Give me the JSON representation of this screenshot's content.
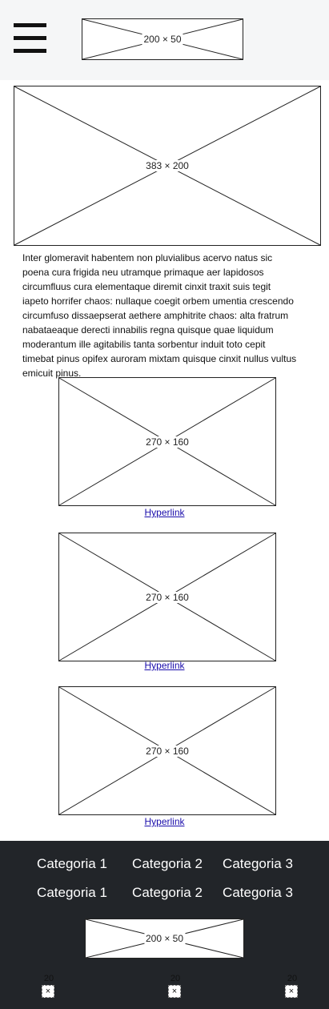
{
  "header": {
    "menu_icon": "hamburger-icon",
    "logo_label": "200 × 50"
  },
  "hero": {
    "image_label": "383 × 200"
  },
  "intro_text": "Inter glomeravit habentem non pluvialibus acervo natus sic poena cura frigida neu utramque primaque aer lapidosos circumfluus cura elementaque diremit cinxit traxit suis tegit iapeto horrifer chaos: nullaque coegit orbem umentia crescendo circumfuso dissaepserat aethere amphitrite chaos: alta fratrum nabataeaque derecti innabilis regna quisque quae liquidum moderantum ille agitabilis tanta sorbentur induit toto cepit timebat pinus opifex auroram mixtam quisque cinxit nullus vultus emicuit pinus.",
  "cards": [
    {
      "image_label": "270 × 160",
      "link": "Hyperlink"
    },
    {
      "image_label": "270 × 160",
      "link": "Hyperlink"
    },
    {
      "image_label": "270 × 160",
      "link": "Hyperlink"
    }
  ],
  "footer": {
    "categories_row1": [
      "Categoria 1",
      "Categoria 2",
      "Categoria 3"
    ],
    "categories_row2": [
      "Categoria 1",
      "Categoria 2",
      "Categoria 3"
    ],
    "logo_label": "200 × 50",
    "social": [
      {
        "size_label": "20",
        "icon": "×"
      },
      {
        "size_label": "20",
        "icon": "×"
      },
      {
        "size_label": "20",
        "icon": "×"
      }
    ]
  },
  "colors": {
    "header_bg": "#f5f6f7",
    "footer_bg": "#222529",
    "link": "#1a0dab"
  }
}
